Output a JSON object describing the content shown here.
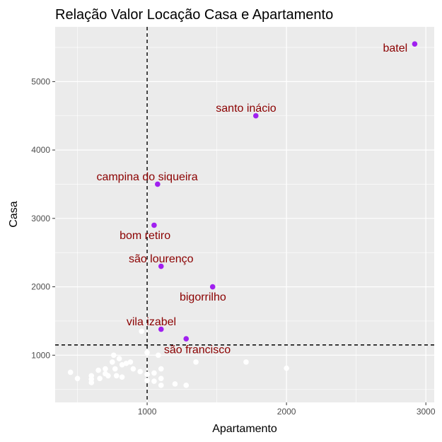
{
  "chart_data": {
    "type": "scatter",
    "title": "Relação Valor Locação Casa e Apartamento",
    "xlabel": "Apartamento",
    "ylabel": "Casa",
    "xlim": [
      340,
      3060
    ],
    "ylim": [
      310,
      5800
    ],
    "x_ticks": [
      1000,
      2000,
      3000
    ],
    "y_ticks": [
      1000,
      2000,
      3000,
      4000,
      5000
    ],
    "x_tick_labels": [
      "1000",
      "2000",
      "3000"
    ],
    "y_tick_labels": [
      "1000",
      "2000",
      "3000",
      "4000",
      "5000"
    ],
    "reference_lines": {
      "vertical_x": 1000,
      "horizontal_y": 1150
    },
    "grid": true,
    "colors": {
      "panel": "#ebebeb",
      "grid": "#ffffff",
      "highlight": "#a020f0",
      "other": "#ffffff",
      "label": "#8b0000"
    },
    "highlighted": [
      {
        "label": "batel",
        "x": 2920,
        "y": 5550,
        "label_x": 2780,
        "label_y": 5500
      },
      {
        "label": "santo inácio",
        "x": 1780,
        "y": 4500,
        "label_x": 1710,
        "label_y": 4620
      },
      {
        "label": "campina do siqueira",
        "x": 1075,
        "y": 3500,
        "label_x": 1000,
        "label_y": 3620
      },
      {
        "label": "bom retiro",
        "x": 1050,
        "y": 2900,
        "label_x": 985,
        "label_y": 2760
      },
      {
        "label": "são lourenço",
        "x": 1100,
        "y": 2300,
        "label_x": 1100,
        "label_y": 2420
      },
      {
        "label": "bigorrilho",
        "x": 1470,
        "y": 2000,
        "label_x": 1400,
        "label_y": 1860
      },
      {
        "label": "vila izabel",
        "x": 1100,
        "y": 1380,
        "label_x": 1030,
        "label_y": 1500
      },
      {
        "label": "são francisco",
        "x": 1280,
        "y": 1240,
        "label_x": 1360,
        "label_y": 1090
      }
    ],
    "others": [
      {
        "x": 450,
        "y": 750
      },
      {
        "x": 500,
        "y": 660
      },
      {
        "x": 600,
        "y": 700
      },
      {
        "x": 600,
        "y": 650
      },
      {
        "x": 600,
        "y": 600
      },
      {
        "x": 650,
        "y": 780
      },
      {
        "x": 660,
        "y": 660
      },
      {
        "x": 700,
        "y": 800
      },
      {
        "x": 700,
        "y": 730
      },
      {
        "x": 720,
        "y": 700
      },
      {
        "x": 750,
        "y": 900
      },
      {
        "x": 760,
        "y": 1000
      },
      {
        "x": 770,
        "y": 800
      },
      {
        "x": 780,
        "y": 700
      },
      {
        "x": 800,
        "y": 950
      },
      {
        "x": 820,
        "y": 860
      },
      {
        "x": 820,
        "y": 680
      },
      {
        "x": 850,
        "y": 880
      },
      {
        "x": 880,
        "y": 900
      },
      {
        "x": 900,
        "y": 800
      },
      {
        "x": 950,
        "y": 760
      },
      {
        "x": 960,
        "y": 1350
      },
      {
        "x": 1000,
        "y": 1040
      },
      {
        "x": 1000,
        "y": 720
      },
      {
        "x": 1000,
        "y": 630
      },
      {
        "x": 1050,
        "y": 620
      },
      {
        "x": 1050,
        "y": 740
      },
      {
        "x": 1080,
        "y": 1000
      },
      {
        "x": 1100,
        "y": 800
      },
      {
        "x": 1100,
        "y": 660
      },
      {
        "x": 1100,
        "y": 560
      },
      {
        "x": 1200,
        "y": 580
      },
      {
        "x": 1280,
        "y": 560
      },
      {
        "x": 1350,
        "y": 900
      },
      {
        "x": 1710,
        "y": 900
      },
      {
        "x": 2000,
        "y": 810
      }
    ]
  }
}
